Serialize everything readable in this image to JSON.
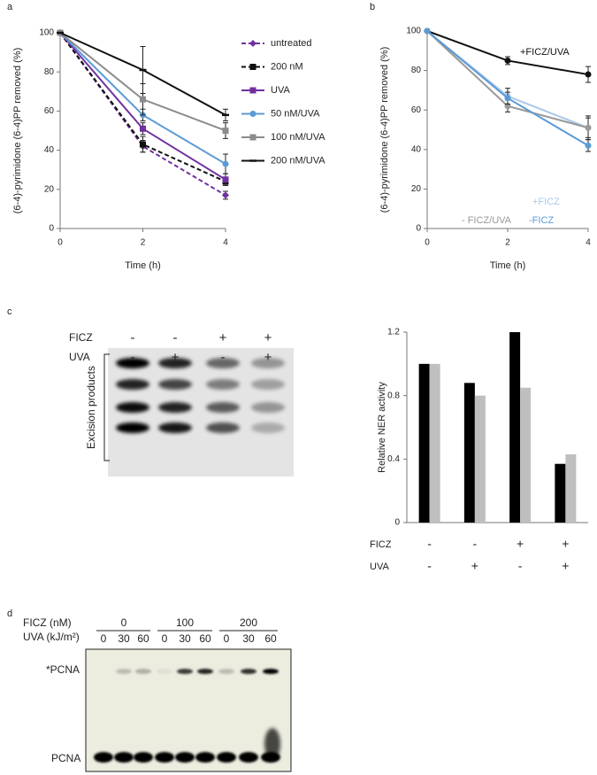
{
  "chart_data": [
    {
      "type": "line",
      "panel": "a",
      "xlabel": "Time (h)",
      "ylabel": "(6-4)-pyrimidone (6-4)PP removed (%)",
      "x": [
        0,
        2,
        4
      ],
      "xlim": [
        0,
        4
      ],
      "xticks": [
        0,
        2,
        4
      ],
      "ylim": [
        0,
        100
      ],
      "yticks": [
        0,
        20,
        40,
        60,
        80,
        100
      ],
      "legend": "right",
      "series": [
        {
          "name": "untreated",
          "color": "#7030a0",
          "line_style": "dashed",
          "marker": "diamond",
          "values": [
            100,
            42,
            17
          ],
          "errors": [
            0,
            3,
            2
          ]
        },
        {
          "name": "200 nM",
          "color": "#111111",
          "line_style": "dashed",
          "marker": "square",
          "values": [
            100,
            43,
            24
          ],
          "errors": [
            0,
            4,
            2
          ]
        },
        {
          "name": "UVA",
          "color": "#7030a0",
          "line_style": "solid",
          "marker": "square",
          "values": [
            100,
            51,
            25
          ],
          "errors": [
            0,
            3,
            3
          ]
        },
        {
          "name": "50 nM/UVA",
          "color": "#5b9bd5",
          "line_style": "solid",
          "marker": "circle",
          "values": [
            100,
            58,
            33
          ],
          "errors": [
            0,
            3,
            5
          ]
        },
        {
          "name": "100 nM/UVA",
          "color": "#8c8c8c",
          "line_style": "solid",
          "marker": "square",
          "values": [
            100,
            66,
            50
          ],
          "errors": [
            0,
            8,
            4
          ]
        },
        {
          "name": "200 nM/UVA",
          "color": "#111111",
          "line_style": "solid",
          "marker": "dash",
          "values": [
            100,
            81,
            58
          ],
          "errors": [
            0,
            12,
            3
          ]
        }
      ]
    },
    {
      "type": "line",
      "panel": "b",
      "xlabel": "Time (h)",
      "ylabel": "(6-4)-pyrimidone (6-4)PP removed (%)",
      "x": [
        0,
        2,
        4
      ],
      "xlim": [
        0,
        4
      ],
      "xticks": [
        0,
        2,
        4
      ],
      "ylim": [
        0,
        100
      ],
      "yticks": [
        0,
        20,
        40,
        60,
        80,
        100
      ],
      "legend": "inline",
      "series": [
        {
          "name": "+FICZ/UVA",
          "color": "#111111",
          "line_style": "solid",
          "marker": "circle",
          "values": [
            100,
            85,
            78
          ],
          "errors": [
            0,
            2,
            4
          ]
        },
        {
          "name": "+FICZ",
          "color": "#a9c8ea",
          "line_style": "solid",
          "marker": "circle",
          "values": [
            100,
            67,
            51
          ],
          "errors": [
            0,
            4,
            5
          ]
        },
        {
          "name": "- FICZ/UVA",
          "color": "#999999",
          "line_style": "solid",
          "marker": "circle",
          "values": [
            100,
            62,
            51
          ],
          "errors": [
            0,
            3,
            6
          ]
        },
        {
          "name": "-FICZ",
          "color": "#5b9bd5",
          "line_style": "solid",
          "marker": "circle",
          "values": [
            100,
            66,
            42
          ],
          "errors": [
            0,
            3,
            3
          ]
        }
      ]
    },
    {
      "type": "bar",
      "panel": "c",
      "ylabel": "Relative NER activity",
      "categories": [
        null,
        null,
        null,
        null
      ],
      "ylim": [
        0,
        1.2
      ],
      "yticks": [
        0,
        0.4,
        0.8,
        1.2
      ],
      "series": [
        {
          "color": "#000000",
          "values": [
            1.0,
            0.88,
            1.2,
            0.37
          ]
        },
        {
          "color": "#bfbfbf",
          "values": [
            1.0,
            0.8,
            0.85,
            0.43
          ]
        }
      ],
      "conditions": [
        {
          "label": "FICZ",
          "signs": [
            "-",
            "-",
            "+",
            "+"
          ]
        },
        {
          "label": "UVA",
          "signs": [
            "-",
            "+",
            "-",
            "+"
          ]
        }
      ]
    }
  ],
  "gel_c": {
    "conditions": [
      {
        "label": "FICZ",
        "signs": [
          "-",
          "-",
          "+",
          "+"
        ]
      },
      {
        "label": "UVA",
        "signs": [
          "-",
          "+",
          "-",
          "+"
        ]
      }
    ],
    "bracket_label": "Excision products"
  },
  "gel_d": {
    "panel": "d",
    "ficz_label": "FICZ (nM)",
    "ficz_doses": [
      "0",
      "100",
      "200"
    ],
    "uva_label": "UVA (kJ/m²)",
    "uva_doses": [
      "0",
      "30",
      "60",
      "0",
      "30",
      "60",
      "0",
      "30",
      "60"
    ],
    "upper_band": "*PCNA",
    "lower_band": "PCNA"
  }
}
